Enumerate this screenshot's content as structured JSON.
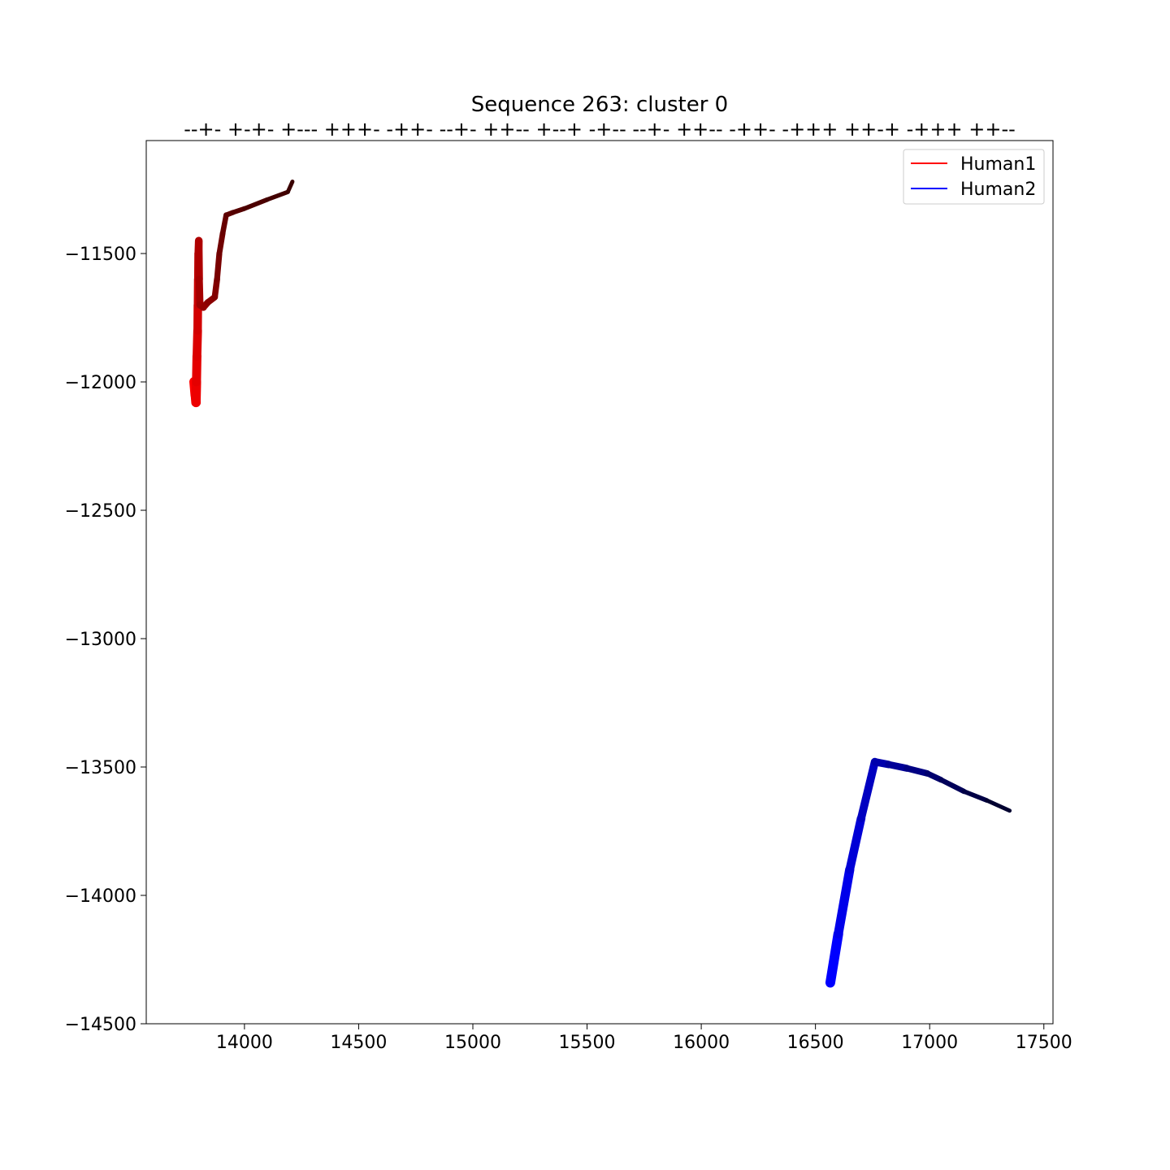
{
  "chart_data": {
    "type": "line",
    "title": "Sequence 263: cluster 0",
    "subtitle": "--+- +-+- +--- +++- -++- --+- ++-- +--+ -+-- --+- ++-- -++- -+++ ++-+ -+++ ++--",
    "xlabel": "",
    "ylabel": "",
    "xlim": [
      13570,
      17540
    ],
    "ylim": [
      -14500,
      -11060
    ],
    "x_ticks": [
      14000,
      14500,
      15000,
      15500,
      16000,
      16500,
      17000,
      17500
    ],
    "x_tick_labels": [
      "14000",
      "14500",
      "15000",
      "15500",
      "16000",
      "16500",
      "17000",
      "17500"
    ],
    "y_ticks": [
      -11500,
      -12000,
      -12500,
      -13000,
      -13500,
      -14000,
      -14500
    ],
    "y_tick_labels": [
      "−11500",
      "−12000",
      "−12500",
      "−13000",
      "−13500",
      "−14000",
      "−14500"
    ],
    "grid": false,
    "legend_position": "top-right",
    "series": [
      {
        "name": "Human1",
        "color_start": "#ff0000",
        "color_end": "#3a0000",
        "legend_color": "#ff0000",
        "points": [
          [
            13780,
            -12000
          ],
          [
            13785,
            -12050
          ],
          [
            13788,
            -12080
          ],
          [
            13790,
            -12000
          ],
          [
            13792,
            -11900
          ],
          [
            13795,
            -11800
          ],
          [
            13796,
            -11700
          ],
          [
            13797,
            -11600
          ],
          [
            13798,
            -11500
          ],
          [
            13800,
            -11450
          ],
          [
            13802,
            -11600
          ],
          [
            13805,
            -11700
          ],
          [
            13820,
            -11710
          ],
          [
            13840,
            -11690
          ],
          [
            13870,
            -11670
          ],
          [
            13880,
            -11600
          ],
          [
            13890,
            -11500
          ],
          [
            13905,
            -11420
          ],
          [
            13920,
            -11350
          ],
          [
            13950,
            -11340
          ],
          [
            14000,
            -11325
          ],
          [
            14100,
            -11290
          ],
          [
            14190,
            -11260
          ],
          [
            14210,
            -11220
          ]
        ]
      },
      {
        "name": "Human2",
        "color_start": "#0000ff",
        "color_end": "#000030",
        "legend_color": "#0000ff",
        "points": [
          [
            16565,
            -14340
          ],
          [
            16600,
            -14150
          ],
          [
            16650,
            -13900
          ],
          [
            16700,
            -13700
          ],
          [
            16760,
            -13480
          ],
          [
            16820,
            -13490
          ],
          [
            16900,
            -13505
          ],
          [
            16990,
            -13525
          ],
          [
            17050,
            -13550
          ],
          [
            17150,
            -13595
          ],
          [
            17250,
            -13630
          ],
          [
            17350,
            -13670
          ]
        ]
      }
    ]
  }
}
